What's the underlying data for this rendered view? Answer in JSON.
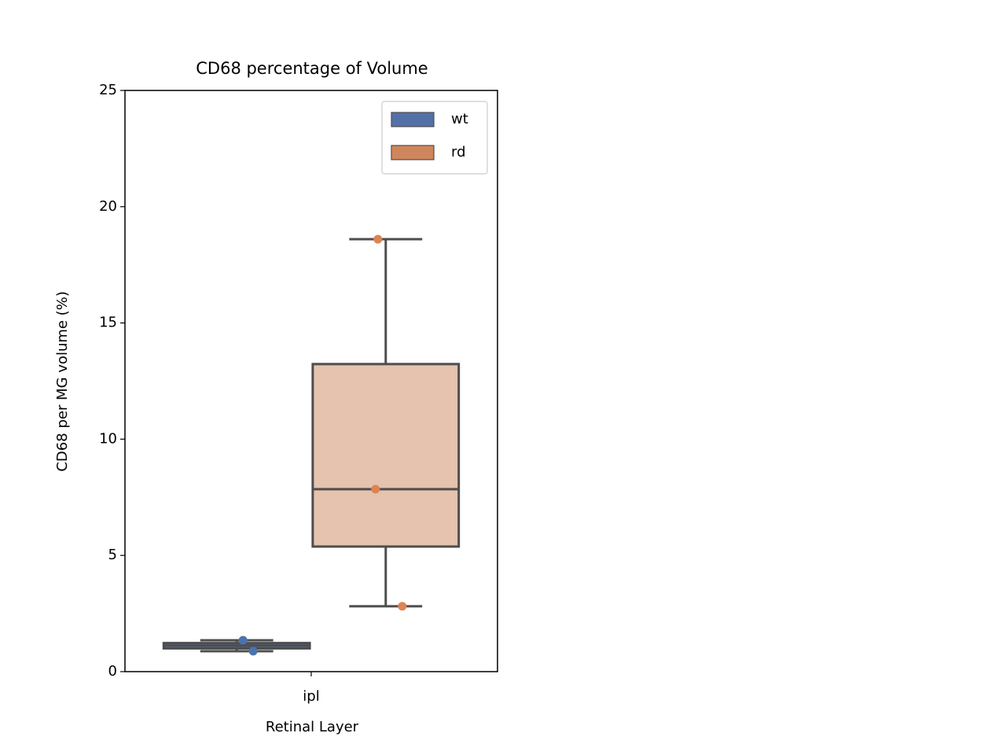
{
  "chart_data": {
    "type": "box",
    "title": "CD68 percentage of Volume",
    "x_label": "Retinal Layer",
    "y_label": "CD68 per MG volume (%)",
    "categories": [
      "ipl"
    ],
    "ylim": [
      0,
      25
    ],
    "yticks": [
      0,
      5,
      10,
      15,
      20,
      25
    ],
    "legend": "upper right",
    "series": [
      {
        "name": "wt",
        "color": "#5470a8",
        "box_color": "#5b6f99",
        "point_color": "#4c72b0",
        "stats": [
          {
            "min": 0.88,
            "q1": 1.0,
            "median": 1.12,
            "q3": 1.23,
            "max": 1.35
          }
        ],
        "points": [
          [
            1.35,
            0.88
          ]
        ]
      },
      {
        "name": "rd",
        "color": "#d0865c",
        "box_color": "#e5c3ae",
        "point_color": "#dd8452",
        "stats": [
          {
            "min": 2.81,
            "q1": 5.38,
            "median": 7.85,
            "q3": 13.23,
            "max": 18.6
          }
        ],
        "points": [
          [
            18.6,
            7.85,
            2.81
          ]
        ]
      }
    ]
  }
}
